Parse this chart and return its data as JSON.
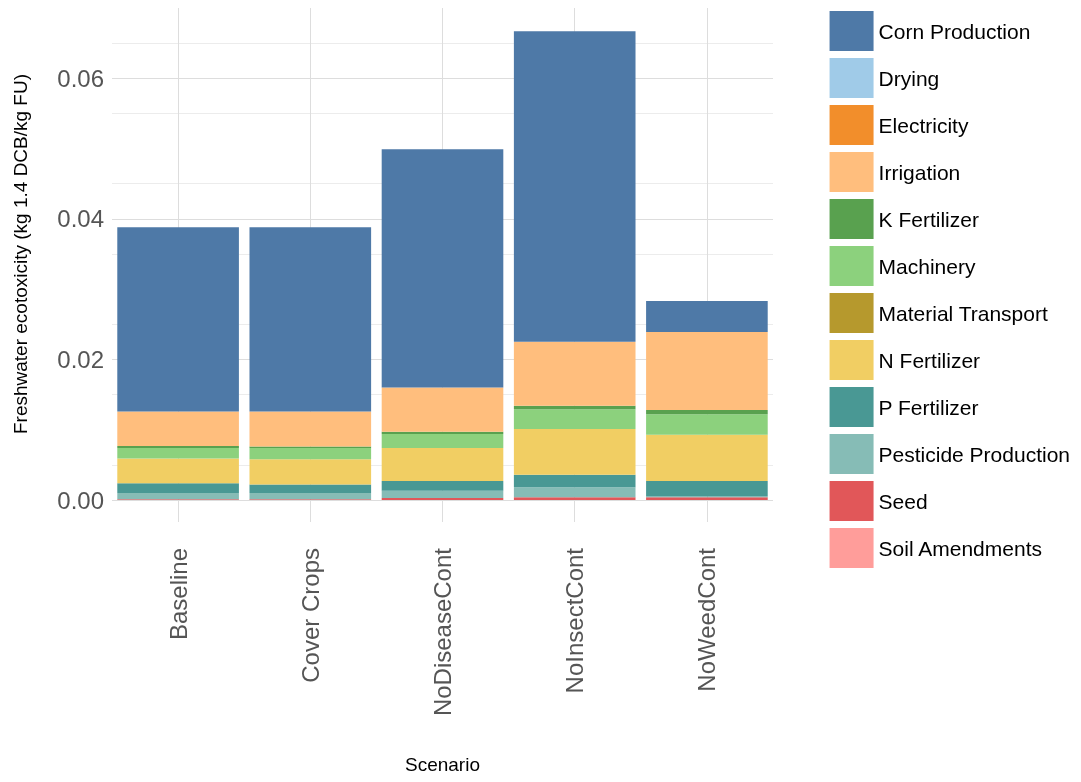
{
  "chart_data": {
    "type": "bar",
    "stacked": true,
    "xlabel": "Scenario",
    "ylabel": "Freshwater ecotoxicity (kg 1.4 DCB/kg FU)",
    "categories": [
      "Baseline",
      "Cover Crops",
      "NoDiseaseCont",
      "NoInsectCont",
      "NoWeedCont"
    ],
    "ylim": [
      0,
      0.07
    ],
    "yticks": [
      {
        "value": 0,
        "label": "0.00"
      },
      {
        "value": 0.02,
        "label": "0.02"
      },
      {
        "value": 0.04,
        "label": "0.04"
      },
      {
        "value": 0.06,
        "label": "0.06"
      }
    ],
    "grid": true,
    "legend": "right",
    "series": [
      {
        "name": "Soil Amendments",
        "color": "#ff9d9a",
        "values": [
          0,
          0,
          0,
          0,
          0
        ]
      },
      {
        "name": "Seed",
        "color": "#e15759",
        "values": [
          0.0001,
          0.0001,
          0.0003,
          0.0004,
          0.0004
        ]
      },
      {
        "name": "Pesticide Production",
        "color": "#86bcb6",
        "values": [
          0.0009,
          0.0009,
          0.001,
          0.0014,
          0.0001
        ]
      },
      {
        "name": "P Fertilizer",
        "color": "#499894",
        "values": [
          0.0014,
          0.0012,
          0.0014,
          0.0018,
          0.0022
        ]
      },
      {
        "name": "N Fertilizer",
        "color": "#f1ce63",
        "values": [
          0.0035,
          0.0036,
          0.0047,
          0.0065,
          0.0066
        ]
      },
      {
        "name": "Material Transport",
        "color": "#b6992d",
        "values": [
          0,
          0,
          0,
          0,
          0
        ]
      },
      {
        "name": "Machinery",
        "color": "#8cd17d",
        "values": [
          0.0015,
          0.0016,
          0.002,
          0.0028,
          0.0029
        ]
      },
      {
        "name": "K Fertilizer",
        "color": "#59a14f",
        "values": [
          0.0003,
          0.0002,
          0.0003,
          0.0005,
          0.0006
        ]
      },
      {
        "name": "Irrigation",
        "color": "#ffbe7d",
        "values": [
          0.0049,
          0.005,
          0.0063,
          0.0091,
          0.0111
        ]
      },
      {
        "name": "Electricity",
        "color": "#f28e2b",
        "values": [
          0,
          0,
          0,
          0,
          0
        ]
      },
      {
        "name": "Drying",
        "color": "#a0cbe8",
        "values": [
          0,
          0,
          0,
          0,
          0
        ]
      },
      {
        "name": "Corn Production",
        "color": "#4e79a7",
        "values": [
          0.0262,
          0.0262,
          0.0339,
          0.0442,
          0.0044
        ]
      }
    ]
  }
}
